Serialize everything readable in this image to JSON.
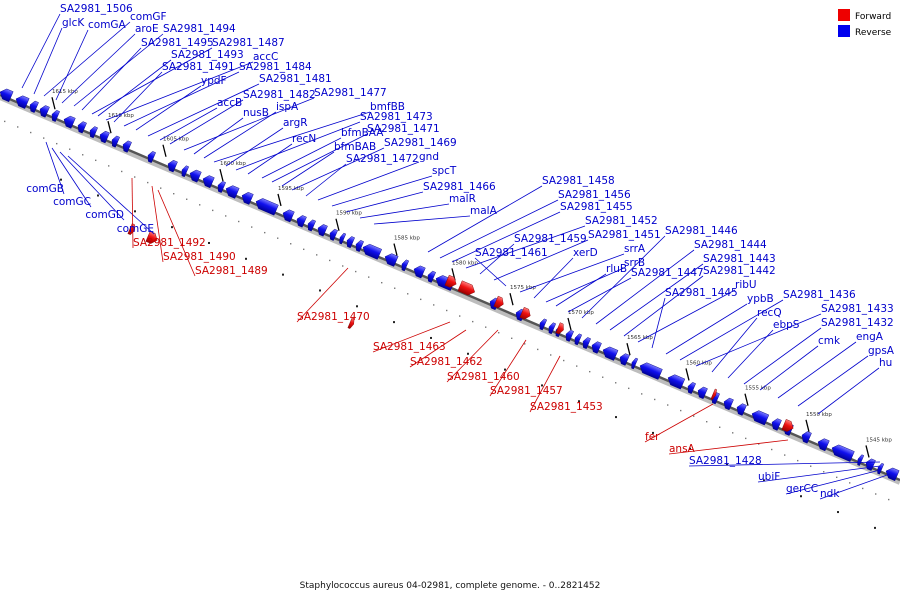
{
  "caption": "Staphylococcus aureus 04-02981, complete genome. - 0..2821452",
  "legend": {
    "forward": {
      "label": "Forward",
      "color": "#ee0000"
    },
    "reverse": {
      "label": "Reverse",
      "color": "#0000ee"
    }
  },
  "axis": {
    "ticks": [
      "1615 kbp",
      "1610 kbp",
      "1605 kbp",
      "1600 kbp",
      "1595 kbp",
      "1590 kbp",
      "1585 kbp",
      "1580 kbp",
      "1575 kbp",
      "1570 kbp",
      "1565 kbp",
      "1560 kbp",
      "1555 kbp",
      "1550 kbp",
      "1545 kbp"
    ]
  },
  "forward_labels": [
    "SA2981_1492",
    "SA2981_1490",
    "SA2981_1489",
    "SA2981_1470",
    "SA2981_1463",
    "SA2981_1462",
    "SA2981_1460",
    "SA2981_1457",
    "SA2981_1453",
    "fer",
    "ansA"
  ],
  "reverse_top_labels": [
    "SA2981_1506",
    "glcK",
    "comGF",
    "comGA",
    "aroE",
    "SA2981_1494",
    "SA2981_1495",
    "SA2981_1487",
    "SA2981_1493",
    "accC",
    "SA2981_1491",
    "SA2981_1484",
    "ypdF",
    "SA2981_1481",
    "accB",
    "SA2981_1482",
    "SA2981_1477",
    "nusB",
    "ispA",
    "bmfBB",
    "argR",
    "SA2981_1473",
    "recN",
    "bfmBAA",
    "SA2981_1471",
    "bfmBAB",
    "SA2981_1469",
    "SA2981_1472",
    "gnd",
    "spcT",
    "SA2981_1466",
    "malR",
    "malA",
    "SA2981_1458",
    "SA2981_1456",
    "SA2981_1455",
    "SA2981_1452",
    "SA2981_1459",
    "SA2981_1451",
    "SA2981_1461",
    "srrA",
    "xerD",
    "srrB",
    "rluB",
    "SA2981_1447",
    "SA2981_1446",
    "SA2981_1444",
    "SA2981_1443",
    "SA2981_1442",
    "ribU",
    "SA2981_1445",
    "ypbB",
    "SA2981_1436",
    "SA2981_1433",
    "recQ",
    "ebpS",
    "SA2981_1432",
    "cmk",
    "engA",
    "gpsA",
    "hu"
  ],
  "reverse_bottom_labels": [
    "comGB",
    "comGC",
    "comGD",
    "comGE",
    "SA2981_1428",
    "ubiF",
    "gerCC",
    "ndk"
  ]
}
